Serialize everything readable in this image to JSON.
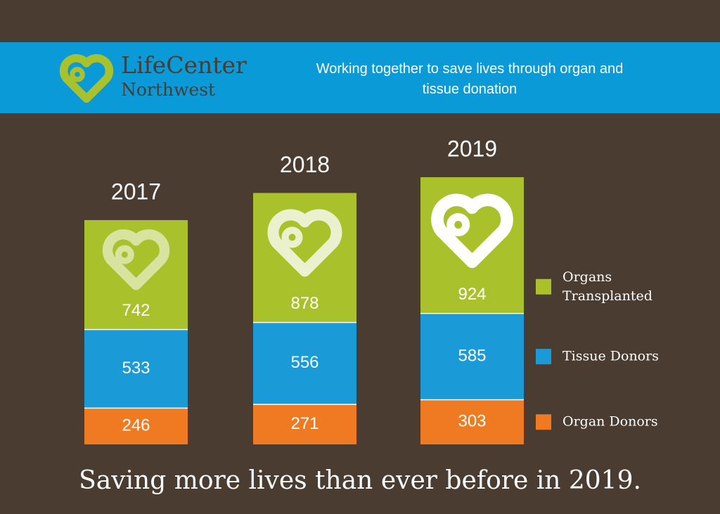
{
  "header": {
    "logo_name": "LifeCenter",
    "logo_region": "Northwest",
    "tagline": "Working together to save lives through organ and tissue donation"
  },
  "chart_data": {
    "type": "stacked-bar",
    "categories": [
      "2017",
      "2018",
      "2019"
    ],
    "series": [
      {
        "name": "Organ Donors",
        "color": "#f07a22",
        "values": [
          246,
          271,
          303
        ]
      },
      {
        "name": "Tissue Donors",
        "color": "#1a9ad6",
        "values": [
          533,
          556,
          585
        ]
      },
      {
        "name": "Organs Transplanted",
        "color": "#a9c12b",
        "values": [
          742,
          878,
          924
        ]
      }
    ],
    "footer": "Saving more lives than ever before in 2019."
  }
}
